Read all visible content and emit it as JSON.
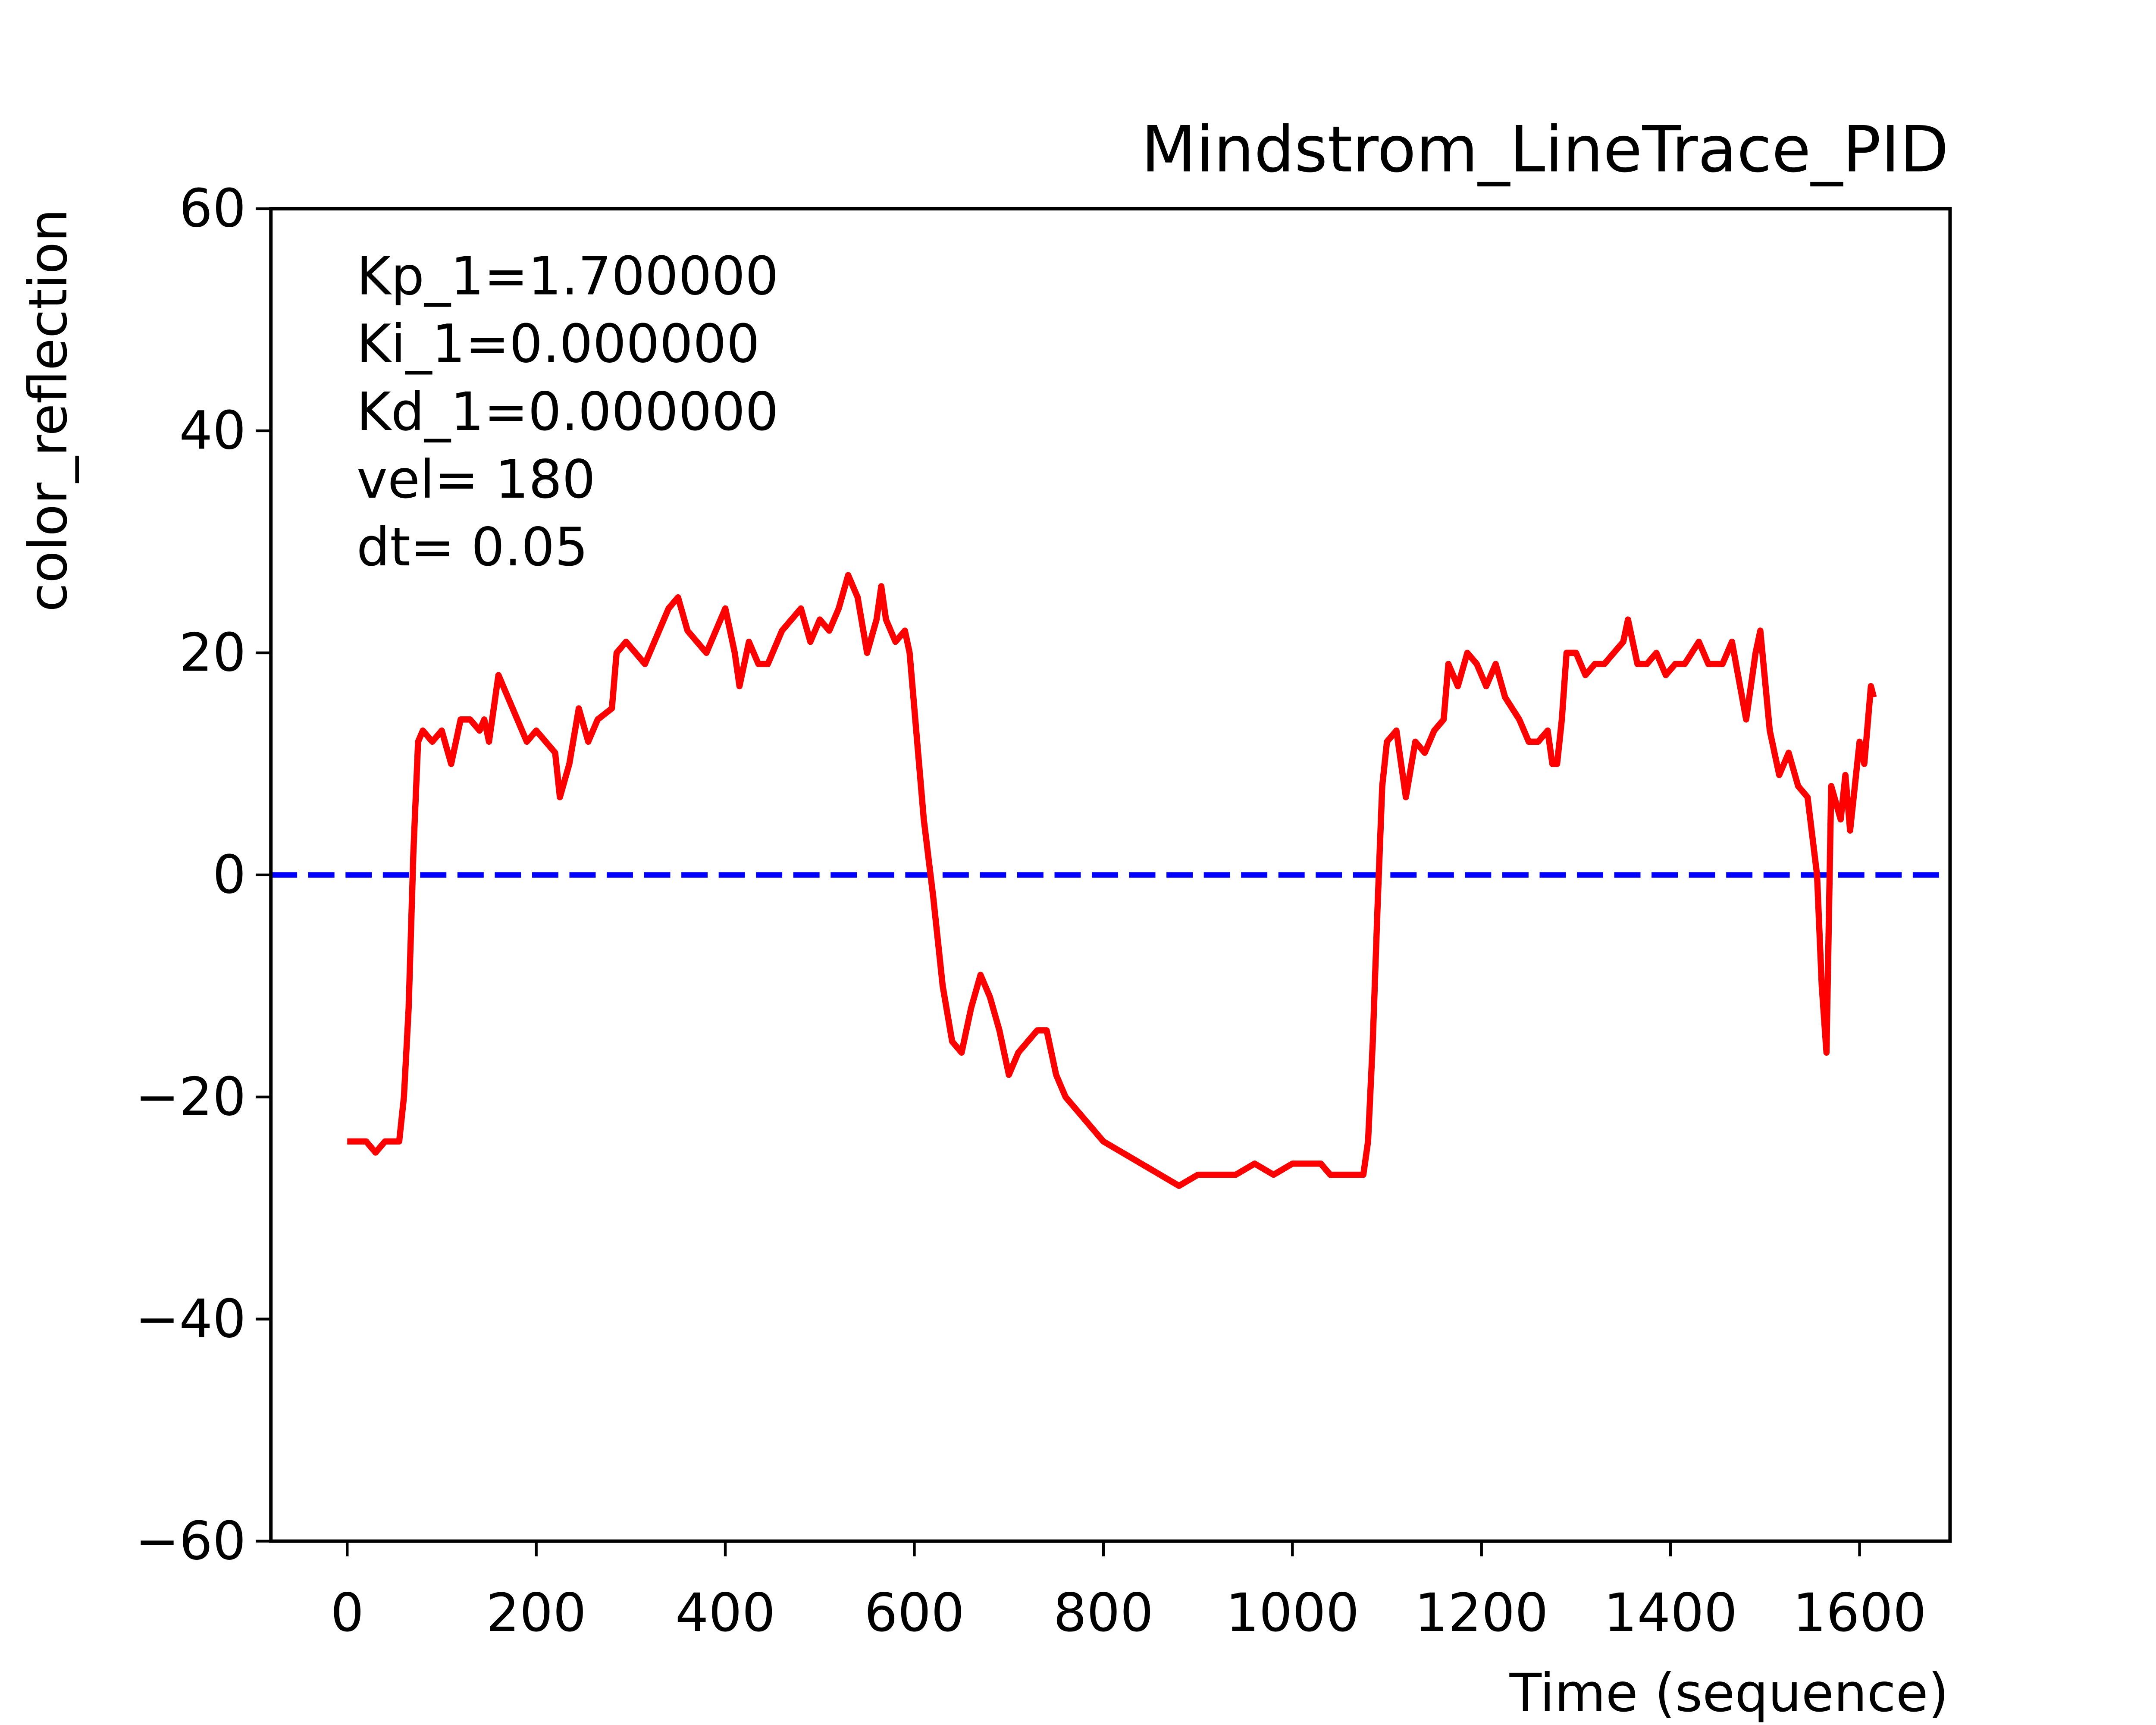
{
  "chart_data": {
    "type": "line",
    "title": "Mindstrom_LineTrace_PID",
    "xlabel": "Time (sequence)",
    "ylabel": "color_reflection",
    "annotations": [
      "Kp_1=1.700000",
      "Ki_1=0.000000",
      "Kd_1=0.000000",
      "vel= 180",
      "dt= 0.05"
    ],
    "xlim": [
      -80.75,
      1695.75
    ],
    "ylim": [
      -60,
      60
    ],
    "xticks": [
      0,
      200,
      400,
      600,
      800,
      1000,
      1200,
      1400,
      1600
    ],
    "yticks": [
      {
        "value": -60,
        "label": "−60"
      },
      {
        "value": -40,
        "label": "−40"
      },
      {
        "value": -20,
        "label": "−20"
      },
      0,
      20,
      40,
      60
    ],
    "hline": {
      "value": 0,
      "color": "#0000ff",
      "style": "dashed"
    },
    "x": [
      0,
      20,
      30,
      40,
      55,
      60,
      65,
      70,
      75,
      80,
      90,
      100,
      110,
      120,
      130,
      140,
      145,
      150,
      160,
      170,
      180,
      190,
      200,
      210,
      220,
      225,
      235,
      245,
      255,
      265,
      280,
      285,
      295,
      305,
      315,
      325,
      340,
      350,
      360,
      370,
      380,
      390,
      400,
      410,
      415,
      425,
      435,
      445,
      460,
      480,
      490,
      500,
      510,
      520,
      530,
      540,
      550,
      560,
      565,
      570,
      580,
      590,
      595,
      600,
      610,
      620,
      630,
      640,
      650,
      660,
      670,
      680,
      690,
      700,
      710,
      720,
      730,
      740,
      750,
      760,
      770,
      780,
      790,
      800,
      820,
      840,
      860,
      880,
      900,
      940,
      960,
      980,
      1000,
      1030,
      1040,
      1060,
      1075,
      1080,
      1085,
      1090,
      1095,
      1100,
      1110,
      1120,
      1130,
      1140,
      1150,
      1160,
      1165,
      1175,
      1185,
      1195,
      1205,
      1215,
      1225,
      1240,
      1250,
      1260,
      1270,
      1275,
      1280,
      1285,
      1290,
      1300,
      1310,
      1320,
      1330,
      1340,
      1350,
      1355,
      1365,
      1375,
      1385,
      1395,
      1405,
      1415,
      1430,
      1440,
      1455,
      1465,
      1480,
      1490,
      1495,
      1505,
      1515,
      1525,
      1535,
      1545,
      1555,
      1560,
      1565,
      1570,
      1580,
      1585,
      1590,
      1600,
      1605,
      1612,
      1615
    ],
    "series": [
      {
        "color": "#ff0000",
        "values": [
          -24,
          -24,
          -25,
          -24,
          -24,
          -20,
          -12,
          2,
          12,
          13,
          12,
          13,
          10,
          14,
          14,
          13,
          14,
          12,
          18,
          16,
          14,
          12,
          13,
          12,
          11,
          7,
          10,
          15,
          12,
          14,
          15,
          20,
          21,
          20,
          19,
          21,
          24,
          25,
          22,
          21,
          20,
          22,
          24,
          20,
          17,
          21,
          19,
          19,
          22,
          24,
          21,
          23,
          22,
          24,
          27,
          25,
          20,
          23,
          26,
          23,
          21,
          22,
          20,
          15,
          5,
          -2,
          -10,
          -15,
          -16,
          -12,
          -9,
          -11,
          -14,
          -18,
          -16,
          -15,
          -14,
          -14,
          -18,
          -20,
          -21,
          -22,
          -23,
          -24,
          -25,
          -26,
          -27,
          -28,
          -27,
          -27,
          -26,
          -27,
          -26,
          -26,
          -27,
          -27,
          -27,
          -24,
          -15,
          -3,
          8,
          12,
          13,
          7,
          12,
          11,
          13,
          14,
          19,
          17,
          20,
          19,
          17,
          19,
          16,
          14,
          12,
          12,
          13,
          10,
          10,
          14,
          20,
          20,
          18,
          19,
          19,
          20,
          21,
          23,
          19,
          19,
          20,
          18,
          19,
          19,
          21,
          19,
          19,
          21,
          14,
          20,
          22,
          13,
          9,
          11,
          8,
          7,
          0,
          -10,
          -16,
          8,
          5,
          9,
          4,
          12,
          10,
          17,
          16
        ]
      }
    ]
  }
}
